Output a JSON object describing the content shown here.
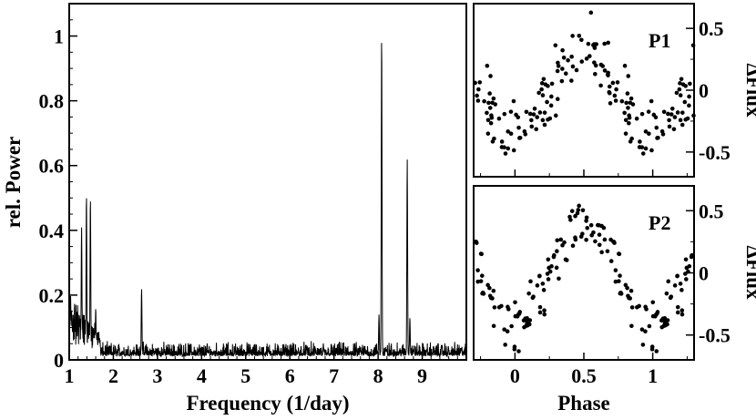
{
  "chart_data": [
    {
      "type": "line",
      "panel": "periodogram",
      "xlabel": "Frequency (1/day)",
      "ylabel": "rel. Power",
      "xlim": [
        1,
        10
      ],
      "ylim": [
        0,
        1.1
      ],
      "xticks": [
        1,
        2,
        3,
        4,
        5,
        6,
        7,
        8,
        9
      ],
      "yticks": [
        0,
        0.2,
        0.4,
        0.6,
        0.8,
        1
      ],
      "grid": false,
      "peaks": [
        {
          "x": 1.28,
          "y": 0.41
        },
        {
          "x": 1.39,
          "y": 0.51
        },
        {
          "x": 1.48,
          "y": 0.5
        },
        {
          "x": 1.6,
          "y": 0.16
        },
        {
          "x": 2.64,
          "y": 0.22
        },
        {
          "x": 8.08,
          "y": 1.0
        },
        {
          "x": 8.02,
          "y": 0.14
        },
        {
          "x": 8.66,
          "y": 0.62
        },
        {
          "x": 8.72,
          "y": 0.13
        }
      ],
      "noise_level": 0.03
    },
    {
      "type": "scatter",
      "panel": "P1",
      "label": "P1",
      "xlabel": "",
      "ylabel": "ΔFlux",
      "xlim": [
        -0.3,
        1.3
      ],
      "ylim": [
        -0.7,
        0.7
      ],
      "yticks": [
        -0.5,
        0,
        0.5
      ],
      "yticklabels": [
        "-0.5",
        "0",
        "0.5"
      ],
      "amplitude": 0.33,
      "peak_phase": 0.5,
      "scatter": 0.12
    },
    {
      "type": "scatter",
      "panel": "P2",
      "label": "P2",
      "xlabel": "Phase",
      "ylabel": "ΔFlux",
      "xlim": [
        -0.3,
        1.3
      ],
      "ylim": [
        -0.7,
        0.7
      ],
      "xticks": [
        0,
        0.5,
        1
      ],
      "xticklabels": [
        "0",
        "0.5",
        "1"
      ],
      "yticks": [
        -0.5,
        0,
        0.5
      ],
      "yticklabels": [
        "-0.5",
        "0",
        "0.5"
      ],
      "amplitude": 0.42,
      "peak_phase": 0.5,
      "scatter": 0.11
    }
  ]
}
